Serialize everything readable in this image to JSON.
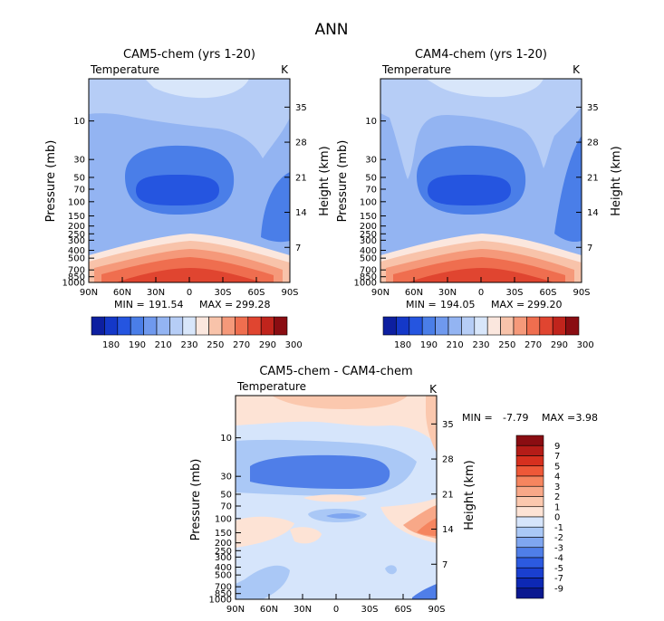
{
  "figure_title": "ANN",
  "chart_data": [
    {
      "type": "contour",
      "id": "p1",
      "title": "CAM5-chem (yrs 1-20)",
      "variable": "Temperature",
      "units": "K",
      "xlabel": "",
      "ylabel": "Pressure (mb)",
      "ylabel_right": "Height (km)",
      "x_ticks": [
        "90N",
        "60N",
        "30N",
        "0",
        "30S",
        "60S",
        "90S"
      ],
      "p_ticks": [
        "10",
        "30",
        "50",
        "70",
        "100",
        "150",
        "200",
        "250",
        "300",
        "400",
        "500",
        "700",
        "850",
        "1000"
      ],
      "height_ticks": [
        "35",
        "28",
        "21",
        "14",
        "7"
      ],
      "stats": {
        "min_label": "MIN =",
        "min": "191.54",
        "max_label": "MAX =",
        "max": "299.28"
      },
      "levels": [
        180,
        190,
        200,
        210,
        220,
        230,
        240,
        250,
        260,
        270,
        280,
        290,
        300
      ],
      "level_labels": [
        "180",
        "190",
        "210",
        "230",
        "250",
        "270",
        "290",
        "300"
      ],
      "colorbar_colors": [
        "#0d1fa0",
        "#1438c8",
        "#2555e0",
        "#4a7ee8",
        "#6f99ee",
        "#93b4f2",
        "#b6cdf6",
        "#d8e6fa",
        "#fbe7de",
        "#f8c3aa",
        "#f5997a",
        "#ef6e4f",
        "#e04530",
        "#c0241c",
        "#8a0d12"
      ],
      "field": {
        "upper_level": "#d8e6fa",
        "strat_level": "#b6cdf6",
        "tropo_level": "#93b4f2",
        "cold_core": "#4a7ee8",
        "coldest_core": "#2555e0",
        "surface_levels": [
          "#fbe7de",
          "#f8c3aa",
          "#f5997a",
          "#ef6e4f",
          "#e04530"
        ]
      }
    },
    {
      "type": "contour",
      "id": "p2",
      "title": "CAM4-chem (yrs 1-20)",
      "variable": "Temperature",
      "units": "K",
      "xlabel": "",
      "ylabel": "Pressure (mb)",
      "ylabel_right": "Height (km)",
      "x_ticks": [
        "90N",
        "60N",
        "30N",
        "0",
        "30S",
        "60S",
        "90S"
      ],
      "p_ticks": [
        "10",
        "30",
        "50",
        "70",
        "100",
        "150",
        "200",
        "250",
        "300",
        "400",
        "500",
        "700",
        "850",
        "1000"
      ],
      "height_ticks": [
        "35",
        "28",
        "21",
        "14",
        "7"
      ],
      "stats": {
        "min_label": "MIN =",
        "min": "194.05",
        "max_label": "MAX =",
        "max": "299.20"
      },
      "levels": [
        180,
        190,
        200,
        210,
        220,
        230,
        240,
        250,
        260,
        270,
        280,
        290,
        300
      ],
      "level_labels": [
        "180",
        "190",
        "210",
        "230",
        "250",
        "270",
        "290",
        "300"
      ],
      "colorbar_colors": [
        "#0d1fa0",
        "#1438c8",
        "#2555e0",
        "#4a7ee8",
        "#6f99ee",
        "#93b4f2",
        "#b6cdf6",
        "#d8e6fa",
        "#fbe7de",
        "#f8c3aa",
        "#f5997a",
        "#ef6e4f",
        "#e04530",
        "#c0241c",
        "#8a0d12"
      ]
    },
    {
      "type": "contour",
      "id": "p3",
      "title": "CAM5-chem - CAM4-chem",
      "variable": "Temperature",
      "units": "K",
      "xlabel": "",
      "ylabel": "Pressure (mb)",
      "ylabel_right": "Height (km)",
      "x_ticks": [
        "90N",
        "60N",
        "30N",
        "0",
        "30S",
        "60S",
        "90S"
      ],
      "p_ticks": [
        "10",
        "30",
        "50",
        "70",
        "100",
        "150",
        "200",
        "250",
        "300",
        "400",
        "500",
        "700",
        "850",
        "1000"
      ],
      "height_ticks": [
        "35",
        "28",
        "21",
        "14",
        "7"
      ],
      "stats": {
        "min_label": "MIN =",
        "min": "-7.79",
        "max_label": "MAX =",
        "max": "3.98"
      },
      "levels": [
        -9,
        -7,
        -5,
        -4,
        -3,
        -2,
        -1,
        0,
        1,
        2,
        3,
        4,
        5,
        7,
        9
      ],
      "level_labels": [
        "9",
        "7",
        "5",
        "4",
        "3",
        "2",
        "1",
        "0",
        "-1",
        "-2",
        "-3",
        "-4",
        "-5",
        "-7",
        "-9"
      ],
      "colorbar_colors": [
        "#8a0d12",
        "#b41c18",
        "#d6301f",
        "#ee5838",
        "#f5855f",
        "#f8a888",
        "#fbc8ae",
        "#fde3d5",
        "#d6e5fb",
        "#aac8f6",
        "#7fa6f0",
        "#4f7ee8",
        "#2c5ae0",
        "#1a3fd0",
        "#0d28b4",
        "#0a1890"
      ]
    }
  ]
}
